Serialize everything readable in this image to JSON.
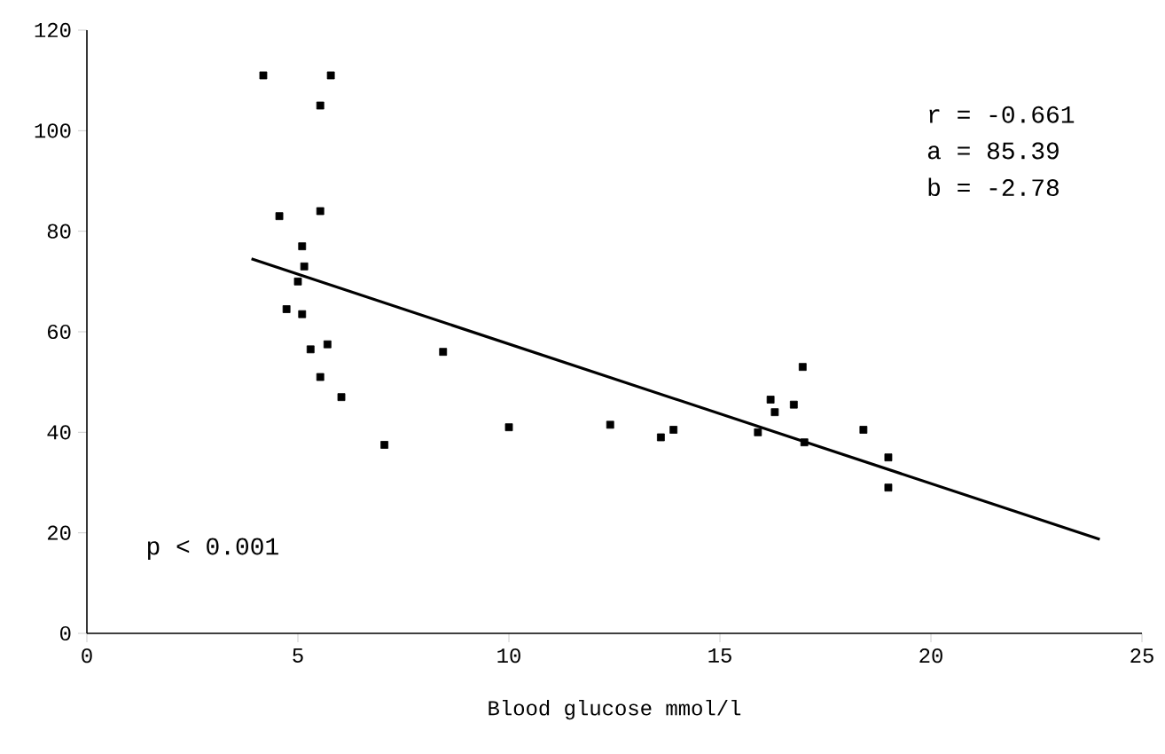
{
  "chart_data": {
    "type": "scatter",
    "xlabel": "Blood glucose mmol/l",
    "xlim": [
      0,
      25
    ],
    "ylim": [
      0,
      120
    ],
    "xticks": [
      0,
      5,
      10,
      15,
      20,
      25
    ],
    "yticks": [
      0,
      20,
      40,
      60,
      80,
      100,
      120
    ],
    "grid": false,
    "legend": false,
    "annotations": [
      "r = -0.661",
      "a = 85.39",
      "b = -2.78",
      "p < 0.001"
    ],
    "series": [
      {
        "marker": "square",
        "color": "#000000",
        "x": [
          4.18,
          5.78,
          5.53,
          5.53,
          4.56,
          5.1,
          5.15,
          5.0,
          4.73,
          5.1,
          5.3,
          5.7,
          5.53,
          6.03,
          7.05,
          8.44,
          10.0,
          12.4,
          13.6,
          13.9,
          15.9,
          16.2,
          16.3,
          16.75,
          16.96,
          17.0,
          18.4,
          18.99,
          18.99
        ],
        "values": [
          111,
          111,
          105,
          84,
          83,
          77,
          73,
          70,
          64.5,
          63.5,
          56.5,
          57.5,
          51,
          47,
          37.5,
          56,
          41,
          41.5,
          39,
          40.5,
          40,
          46.5,
          44,
          45.5,
          53,
          38,
          40.5,
          35,
          29
        ]
      },
      {
        "type": "line",
        "marker": "none",
        "color": "#000000",
        "x": [
          3.9,
          24
        ],
        "values": [
          74.5,
          18.7
        ]
      }
    ]
  }
}
